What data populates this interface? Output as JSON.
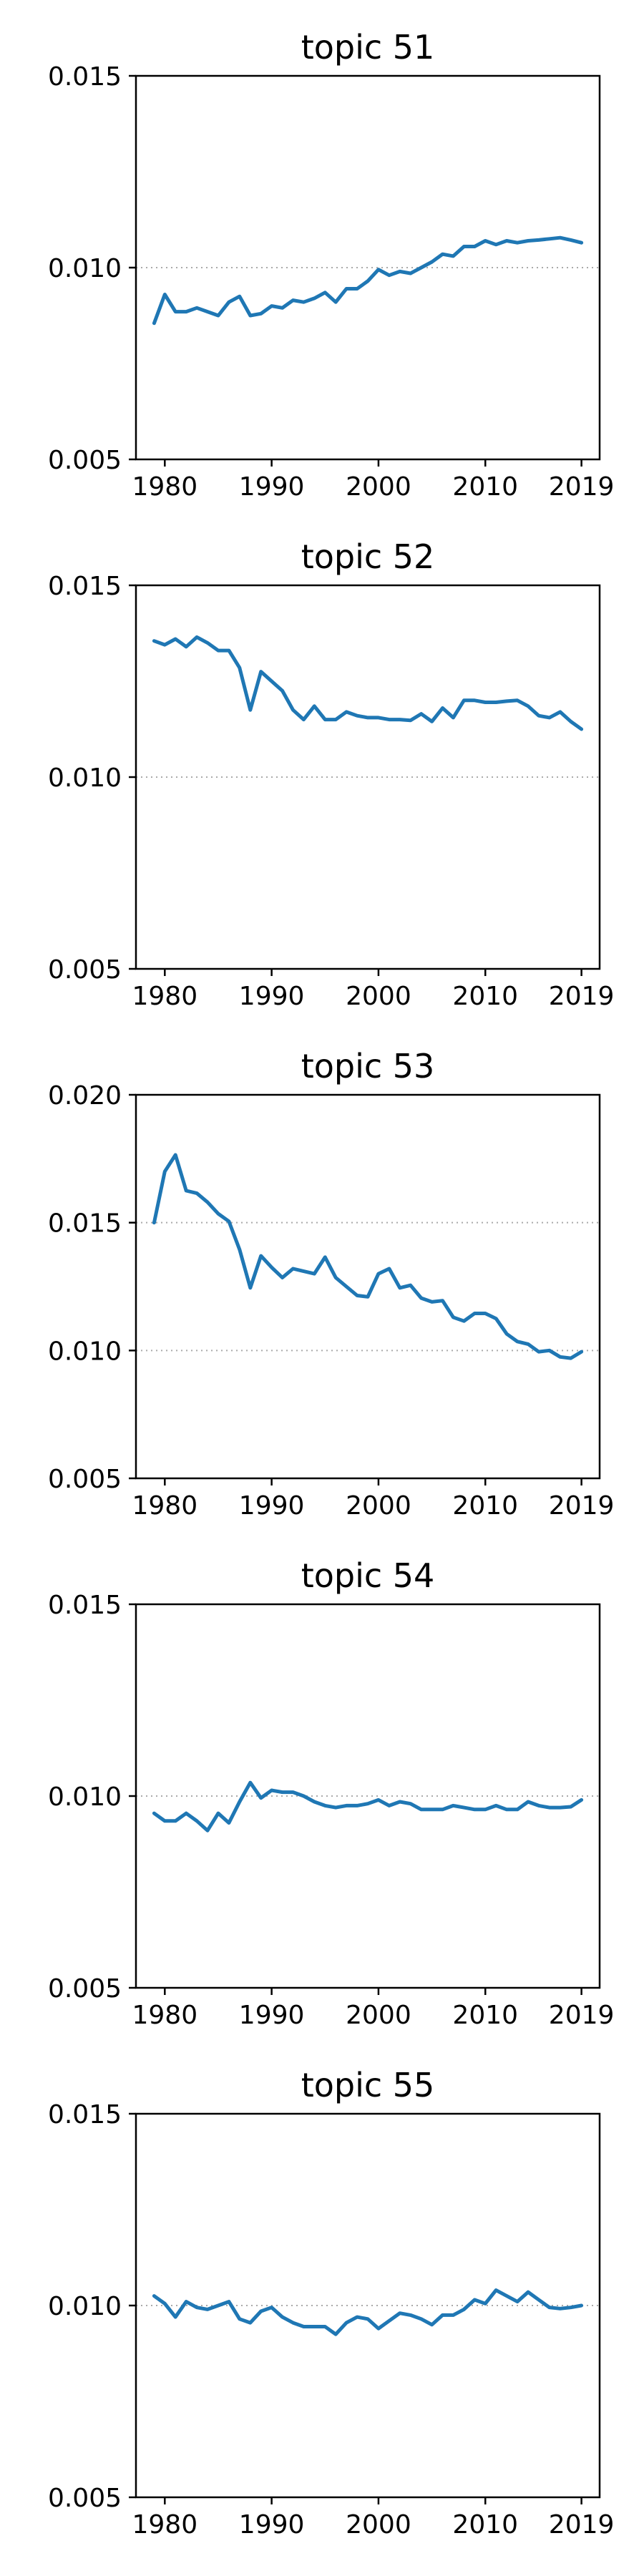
{
  "chart_data": [
    {
      "type": "line",
      "title": "topic 51",
      "xlabel": "",
      "ylabel": "",
      "x": [
        1979,
        1980,
        1981,
        1982,
        1983,
        1984,
        1985,
        1986,
        1987,
        1988,
        1989,
        1990,
        1991,
        1992,
        1993,
        1994,
        1995,
        1996,
        1997,
        1998,
        1999,
        2000,
        2001,
        2002,
        2003,
        2004,
        2005,
        2006,
        2007,
        2008,
        2009,
        2010,
        2011,
        2012,
        2013,
        2014,
        2015,
        2016,
        2017,
        2018,
        2019
      ],
      "series": [
        {
          "values": [
            0.00855,
            0.0093,
            0.00885,
            0.00885,
            0.00895,
            0.00885,
            0.00875,
            0.0091,
            0.00925,
            0.00875,
            0.0088,
            0.009,
            0.00895,
            0.00915,
            0.0091,
            0.0092,
            0.00935,
            0.0091,
            0.00945,
            0.00945,
            0.00965,
            0.00995,
            0.0098,
            0.0099,
            0.00985,
            0.01,
            0.01015,
            0.01035,
            0.0103,
            0.01055,
            0.01055,
            0.0107,
            0.0106,
            0.0107,
            0.01065,
            0.0107,
            0.01072,
            0.01075,
            0.01078,
            0.01072,
            0.01065
          ]
        }
      ],
      "ylim": [
        0.005,
        0.015
      ],
      "yticks": [
        "0.005",
        "0.010",
        "0.015"
      ],
      "xticks": [
        "1980",
        "1990",
        "2000",
        "2010",
        "2019"
      ],
      "ref_line": 0.01
    },
    {
      "type": "line",
      "title": "topic 52",
      "xlabel": "",
      "ylabel": "",
      "x": [
        1979,
        1980,
        1981,
        1982,
        1983,
        1984,
        1985,
        1986,
        1987,
        1988,
        1989,
        1990,
        1991,
        1992,
        1993,
        1994,
        1995,
        1996,
        1997,
        1998,
        1999,
        2000,
        2001,
        2002,
        2003,
        2004,
        2005,
        2006,
        2007,
        2008,
        2009,
        2010,
        2011,
        2012,
        2013,
        2014,
        2015,
        2016,
        2017,
        2018,
        2019
      ],
      "series": [
        {
          "values": [
            0.01355,
            0.01345,
            0.0136,
            0.0134,
            0.01365,
            0.0135,
            0.0133,
            0.0133,
            0.01285,
            0.01175,
            0.01275,
            0.0125,
            0.01225,
            0.01175,
            0.0115,
            0.01185,
            0.0115,
            0.0115,
            0.0117,
            0.0116,
            0.01155,
            0.01155,
            0.0115,
            0.0115,
            0.01148,
            0.01165,
            0.01145,
            0.0118,
            0.01155,
            0.012,
            0.012,
            0.01195,
            0.01195,
            0.01198,
            0.012,
            0.01185,
            0.0116,
            0.01155,
            0.0117,
            0.01145,
            0.01125
          ]
        }
      ],
      "ylim": [
        0.005,
        0.015
      ],
      "yticks": [
        "0.005",
        "0.010",
        "0.015"
      ],
      "xticks": [
        "1980",
        "1990",
        "2000",
        "2010",
        "2019"
      ],
      "ref_line": 0.01
    },
    {
      "type": "line",
      "title": "topic 53",
      "xlabel": "",
      "ylabel": "",
      "x": [
        1979,
        1980,
        1981,
        1982,
        1983,
        1984,
        1985,
        1986,
        1987,
        1988,
        1989,
        1990,
        1991,
        1992,
        1993,
        1994,
        1995,
        1996,
        1997,
        1998,
        1999,
        2000,
        2001,
        2002,
        2003,
        2004,
        2005,
        2006,
        2007,
        2008,
        2009,
        2010,
        2011,
        2012,
        2013,
        2014,
        2015,
        2016,
        2017,
        2018,
        2019
      ],
      "series": [
        {
          "values": [
            0.015,
            0.017,
            0.01765,
            0.01625,
            0.01615,
            0.0158,
            0.01535,
            0.01505,
            0.01395,
            0.01245,
            0.0137,
            0.01325,
            0.01285,
            0.0132,
            0.0131,
            0.013,
            0.01365,
            0.01285,
            0.0125,
            0.01215,
            0.0121,
            0.013,
            0.0132,
            0.01245,
            0.01255,
            0.01205,
            0.0119,
            0.01195,
            0.0113,
            0.01115,
            0.01145,
            0.01145,
            0.01125,
            0.01065,
            0.01035,
            0.01025,
            0.00995,
            0.01,
            0.00975,
            0.0097,
            0.00995
          ]
        }
      ],
      "ylim": [
        0.005,
        0.02
      ],
      "yticks": [
        "0.005",
        "0.010",
        "0.015",
        "0.020"
      ],
      "xticks": [
        "1980",
        "1990",
        "2000",
        "2010",
        "2019"
      ],
      "ref_lines": [
        0.01,
        0.015
      ]
    },
    {
      "type": "line",
      "title": "topic 54",
      "xlabel": "",
      "ylabel": "",
      "x": [
        1979,
        1980,
        1981,
        1982,
        1983,
        1984,
        1985,
        1986,
        1987,
        1988,
        1989,
        1990,
        1991,
        1992,
        1993,
        1994,
        1995,
        1996,
        1997,
        1998,
        1999,
        2000,
        2001,
        2002,
        2003,
        2004,
        2005,
        2006,
        2007,
        2008,
        2009,
        2010,
        2011,
        2012,
        2013,
        2014,
        2015,
        2016,
        2017,
        2018,
        2019
      ],
      "series": [
        {
          "values": [
            0.00955,
            0.00935,
            0.00935,
            0.00955,
            0.00935,
            0.0091,
            0.00955,
            0.0093,
            0.00985,
            0.01035,
            0.00995,
            0.01015,
            0.0101,
            0.0101,
            0.01,
            0.00985,
            0.00975,
            0.0097,
            0.00975,
            0.00975,
            0.0098,
            0.0099,
            0.00975,
            0.00985,
            0.0098,
            0.00965,
            0.00965,
            0.00965,
            0.00975,
            0.0097,
            0.00965,
            0.00965,
            0.00975,
            0.00965,
            0.00965,
            0.00985,
            0.00975,
            0.0097,
            0.0097,
            0.00972,
            0.0099
          ]
        }
      ],
      "ylim": [
        0.005,
        0.015
      ],
      "yticks": [
        "0.005",
        "0.010",
        "0.015"
      ],
      "xticks": [
        "1980",
        "1990",
        "2000",
        "2010",
        "2019"
      ],
      "ref_line": 0.01
    },
    {
      "type": "line",
      "title": "topic 55",
      "xlabel": "",
      "ylabel": "",
      "x": [
        1979,
        1980,
        1981,
        1982,
        1983,
        1984,
        1985,
        1986,
        1987,
        1988,
        1989,
        1990,
        1991,
        1992,
        1993,
        1994,
        1995,
        1996,
        1997,
        1998,
        1999,
        2000,
        2001,
        2002,
        2003,
        2004,
        2005,
        2006,
        2007,
        2008,
        2009,
        2010,
        2011,
        2012,
        2013,
        2014,
        2015,
        2016,
        2017,
        2018,
        2019
      ],
      "series": [
        {
          "values": [
            0.01025,
            0.01005,
            0.0097,
            0.0101,
            0.00995,
            0.0099,
            0.01,
            0.0101,
            0.00965,
            0.00955,
            0.00985,
            0.00995,
            0.0097,
            0.00955,
            0.00945,
            0.00945,
            0.00945,
            0.00925,
            0.00955,
            0.0097,
            0.00965,
            0.0094,
            0.0096,
            0.0098,
            0.00975,
            0.00965,
            0.0095,
            0.00975,
            0.00975,
            0.0099,
            0.01015,
            0.01005,
            0.0104,
            0.01025,
            0.0101,
            0.01035,
            0.01015,
            0.00995,
            0.00992,
            0.00995,
            0.01
          ]
        }
      ],
      "ylim": [
        0.005,
        0.015
      ],
      "yticks": [
        "0.005",
        "0.010",
        "0.015"
      ],
      "xticks": [
        "1980",
        "1990",
        "2000",
        "2010",
        "2019"
      ],
      "ref_line": 0.01
    }
  ]
}
